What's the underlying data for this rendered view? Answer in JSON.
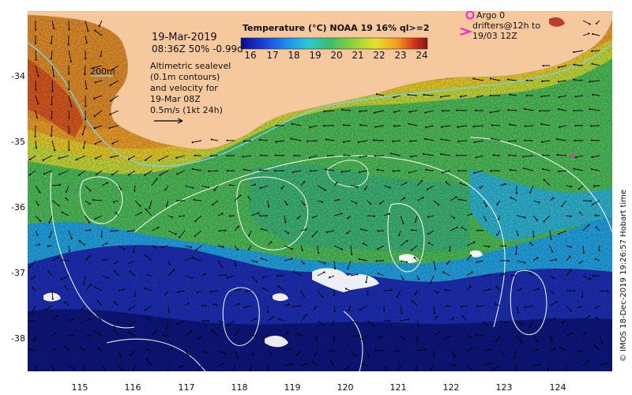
{
  "map": {
    "title_date": "19-Mar-2019",
    "title_time": "08:36Z  50% -0.99d",
    "colorbar_title": "Temperature (°C) NOAA 19 16% ql>=2",
    "colorbar_ticks": [
      "16",
      "17",
      "18",
      "19",
      "20",
      "21",
      "22",
      "23",
      "24"
    ],
    "colorbar_colors": [
      "#0a0a8c",
      "#1a3fd6",
      "#1f8ff0",
      "#2ec4d8",
      "#3dbf6a",
      "#8fd23a",
      "#e8e02a",
      "#f59a1e",
      "#d2341a",
      "#8a1010"
    ],
    "contour_label": "200m",
    "altimetry_lines": [
      "Altimetric sealevel",
      "(0.1m contours)",
      "and velocity for",
      "19-Mar 08Z",
      "0.5m/s (1kt 24h)"
    ],
    "argo_label": "Argo 0",
    "drifters_label_1": "drifters@12h to",
    "drifters_label_2": "19/03 12Z",
    "lat_labels": [
      "-34",
      "-35",
      "-36",
      "-37",
      "-38"
    ],
    "lon_labels": [
      "115",
      "116",
      "117",
      "118",
      "119",
      "120",
      "121",
      "122",
      "123",
      "124"
    ],
    "credit": "© IMOS 18-Dec-2019 19:26:57 Hobart time",
    "colors": {
      "land": "#f5c89e",
      "contour": "#ffffff",
      "shelf": "#7fd0e8",
      "argo": "#ff1fd0",
      "arrow": "#000000"
    }
  }
}
